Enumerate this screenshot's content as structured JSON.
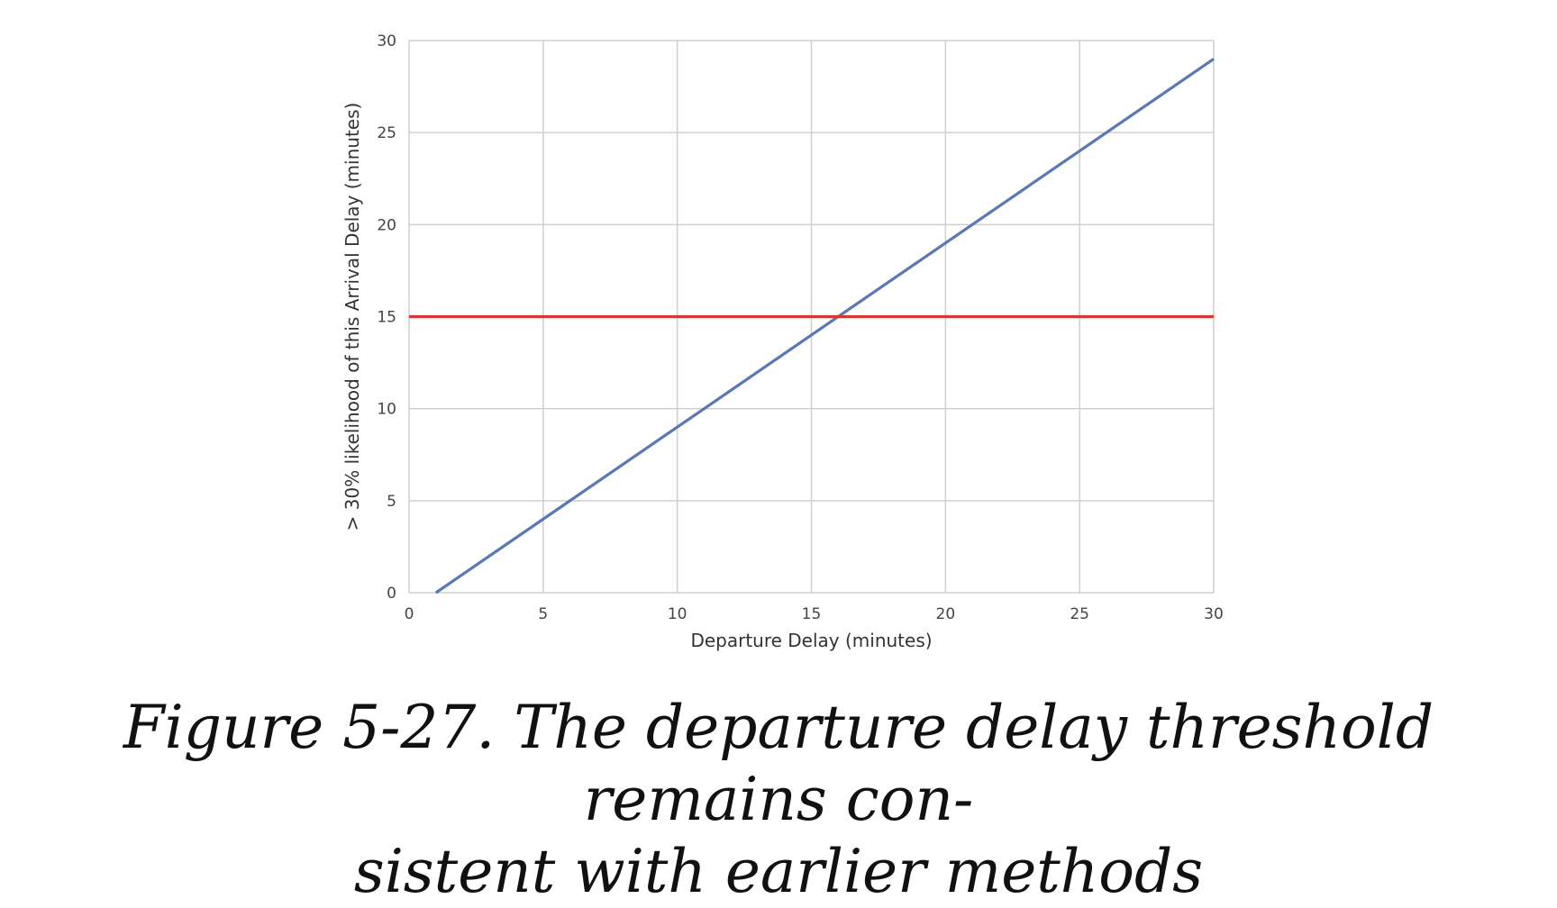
{
  "chart_data": {
    "type": "line",
    "xlabel": "Departure Delay (minutes)",
    "ylabel": "> 30% likelihood of this Arrival Delay (minutes)",
    "xlim": [
      0,
      30
    ],
    "ylim": [
      0,
      30
    ],
    "xticks": [
      "0",
      "5",
      "10",
      "15",
      "20",
      "25",
      "30"
    ],
    "yticks": [
      "0",
      "5",
      "10",
      "15",
      "20",
      "25",
      "30"
    ],
    "grid": true,
    "series": [
      {
        "color": "#5a78b6",
        "x": [
          1,
          30
        ],
        "y": [
          0,
          29
        ]
      },
      {
        "color": "#d43a30",
        "x": [
          0,
          30
        ],
        "y": [
          15,
          15
        ]
      }
    ]
  },
  "caption": {
    "line1": "Figure 5-27. The departure delay threshold remains con-",
    "line2": "sistent with earlier methods"
  }
}
